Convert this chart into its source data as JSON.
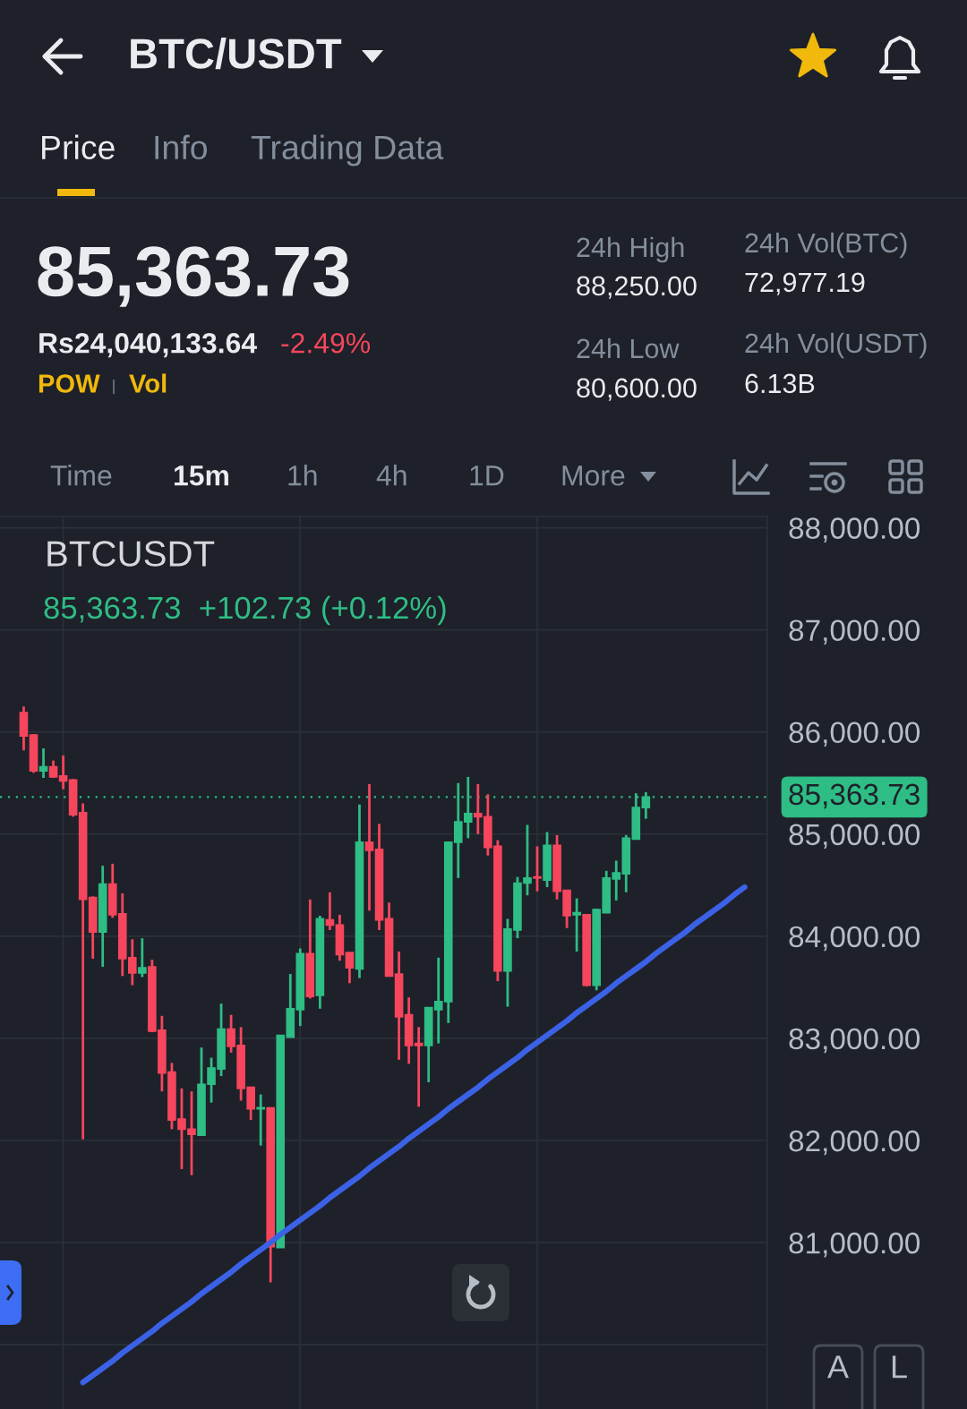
{
  "chart_data": [
    {
      "type": "other",
      "title": "BTC/USDT",
      "annotations": [
        "Price",
        "Info",
        "Trading Data",
        "85,363.73",
        "Rs24,040,133.64",
        "-2.49%",
        "POW",
        "Vol",
        "24h High",
        "88,250.00",
        "24h Low",
        "80,600.00",
        "24h Vol(BTC)",
        "72,977.19",
        "24h Vol(USDT)",
        "6.13B",
        "Time",
        "15m",
        "1h",
        "4h",
        "1D",
        "More",
        "A",
        "L"
      ]
    },
    {
      "type": "candlestick",
      "title": "BTCUSDT",
      "subtitle": "85,363.73  +102.73 (+0.12%)",
      "categories": [
        null,
        null,
        null,
        null,
        null,
        null,
        null,
        null,
        null,
        null,
        null,
        null,
        null,
        null,
        null,
        null,
        null,
        null,
        null,
        null,
        null,
        null,
        null,
        null,
        null,
        null,
        null,
        null,
        null,
        null,
        null,
        null,
        null,
        null,
        null,
        null,
        null,
        null,
        null,
        null,
        null,
        null,
        null,
        null,
        null,
        null,
        null,
        null,
        null,
        null,
        null,
        null,
        null,
        null,
        null,
        null,
        null,
        null,
        null,
        null,
        null,
        null,
        null,
        null,
        null,
        null,
        null,
        null,
        null,
        null,
        null,
        null,
        null,
        null,
        null
      ],
      "ohlc": [
        [
          86190,
          86250,
          85820,
          85960
        ],
        [
          85970,
          85980,
          85600,
          85620
        ],
        [
          85620,
          85840,
          85550,
          85660
        ],
        [
          85660,
          85720,
          85550,
          85560
        ],
        [
          85570,
          85770,
          85440,
          85520
        ],
        [
          85530,
          85540,
          85170,
          85190
        ],
        [
          85210,
          85300,
          82010,
          84360
        ],
        [
          84380,
          84390,
          83780,
          84040
        ],
        [
          84040,
          84690,
          83700,
          84510
        ],
        [
          84510,
          84710,
          84180,
          84210
        ],
        [
          84220,
          84420,
          83610,
          83780
        ],
        [
          83790,
          83970,
          83520,
          83640
        ],
        [
          83640,
          83980,
          83600,
          83690
        ],
        [
          83700,
          83770,
          83060,
          83070
        ],
        [
          83080,
          83220,
          82480,
          82660
        ],
        [
          82670,
          82760,
          82110,
          82200
        ],
        [
          82210,
          82510,
          81720,
          82110
        ],
        [
          82110,
          82480,
          81660,
          82060
        ],
        [
          82050,
          82910,
          82050,
          82550
        ],
        [
          82550,
          82810,
          82370,
          82710
        ],
        [
          82700,
          83340,
          82630,
          83090
        ],
        [
          83090,
          83230,
          82860,
          82920
        ],
        [
          82930,
          83110,
          82390,
          82510
        ],
        [
          82520,
          82520,
          82200,
          82310
        ],
        [
          82310,
          82450,
          81950,
          82320
        ],
        [
          82320,
          82320,
          80610,
          80960
        ],
        [
          80950,
          83030,
          80950,
          83030
        ],
        [
          83010,
          83630,
          83010,
          83290
        ],
        [
          83280,
          83880,
          83120,
          83830
        ],
        [
          83830,
          84360,
          83390,
          83410
        ],
        [
          83420,
          84200,
          83290,
          84170
        ],
        [
          84160,
          84430,
          84060,
          84110
        ],
        [
          84110,
          84210,
          83760,
          83820
        ],
        [
          83840,
          83840,
          83540,
          83690
        ],
        [
          83680,
          85290,
          83590,
          84920
        ],
        [
          84920,
          85490,
          84250,
          84840
        ],
        [
          84850,
          85100,
          84060,
          84160
        ],
        [
          84170,
          84330,
          83610,
          83610
        ],
        [
          83630,
          83850,
          82790,
          83210
        ],
        [
          83230,
          83400,
          82750,
          82930
        ],
        [
          82950,
          83110,
          82330,
          82930
        ],
        [
          82930,
          83300,
          82570,
          83300
        ],
        [
          83280,
          83790,
          82950,
          83360
        ],
        [
          83360,
          84920,
          83150,
          84920
        ],
        [
          84920,
          85500,
          84570,
          85120
        ],
        [
          85120,
          85560,
          84960,
          85200
        ],
        [
          85200,
          85490,
          85000,
          85170
        ],
        [
          85170,
          85390,
          84790,
          84870
        ],
        [
          84880,
          84940,
          83560,
          83660
        ],
        [
          83660,
          84170,
          83310,
          84070
        ],
        [
          84060,
          84580,
          83980,
          84520
        ],
        [
          84520,
          85090,
          84400,
          84570
        ],
        [
          84580,
          84880,
          84440,
          84570
        ],
        [
          84550,
          85020,
          84480,
          84890
        ],
        [
          84890,
          84990,
          84360,
          84440
        ],
        [
          84450,
          84450,
          84080,
          84200
        ],
        [
          84210,
          84370,
          83850,
          84230
        ],
        [
          84210,
          84210,
          83510,
          83520
        ],
        [
          83520,
          84270,
          83470,
          84260
        ],
        [
          84230,
          84640,
          84230,
          84570
        ],
        [
          84560,
          84740,
          84350,
          84620
        ],
        [
          84610,
          84990,
          84430,
          84960
        ],
        [
          84950,
          85400,
          84950,
          85260
        ],
        [
          85260,
          85410,
          85150,
          85363.73
        ],
        null,
        null,
        null,
        null,
        null,
        null,
        null,
        null,
        null,
        null,
        null
      ],
      "colors": [
        "#f6465d",
        "#f6465d",
        "#2ebd85",
        "#f6465d",
        "#f6465d",
        "#f6465d",
        "#f6465d",
        "#f6465d",
        "#2ebd85",
        "#f6465d",
        "#f6465d",
        "#f6465d",
        "#2ebd85",
        "#f6465d",
        "#f6465d",
        "#f6465d",
        "#f6465d",
        "#f6465d",
        "#2ebd85",
        "#2ebd85",
        "#2ebd85",
        "#f6465d",
        "#f6465d",
        "#f6465d",
        "#2ebd85",
        "#f6465d",
        "#2ebd85",
        "#2ebd85",
        "#2ebd85",
        "#f6465d",
        "#2ebd85",
        "#f6465d",
        "#f6465d",
        "#f6465d",
        "#2ebd85",
        "#f6465d",
        "#f6465d",
        "#f6465d",
        "#f6465d",
        "#f6465d",
        "#f6465d",
        "#2ebd85",
        "#2ebd85",
        "#2ebd85",
        "#2ebd85",
        "#2ebd85",
        "#f6465d",
        "#f6465d",
        "#f6465d",
        "#2ebd85",
        "#2ebd85",
        "#2ebd85",
        "#f6465d",
        "#2ebd85",
        "#f6465d",
        "#f6465d",
        "#2ebd85",
        "#f6465d",
        "#2ebd85",
        "#2ebd85",
        "#2ebd85",
        "#2ebd85",
        "#2ebd85",
        "#2ebd85",
        null,
        null,
        null,
        null,
        null,
        null,
        null,
        null,
        null,
        null,
        null
      ],
      "series": [
        {
          "type": "line",
          "color": "#3b62e6",
          "values": [
            null,
            null,
            null,
            null,
            null,
            null,
            79630,
            79700,
            79770,
            79840,
            79920,
            79990,
            80060,
            80130,
            80210,
            80280,
            80350,
            80420,
            80500,
            80570,
            80640,
            80710,
            80790,
            80860,
            80930,
            81000,
            81080,
            81150,
            81220,
            81290,
            81360,
            81440,
            81510,
            81580,
            81650,
            81730,
            81800,
            81870,
            81940,
            82020,
            82090,
            82160,
            82230,
            82310,
            82380,
            82450,
            82520,
            82600,
            82670,
            82740,
            82810,
            82890,
            82960,
            83030,
            83100,
            83170,
            83250,
            83320,
            83390,
            83460,
            83540,
            83610,
            83680,
            83750,
            83830,
            83900,
            83970,
            84040,
            84120,
            84190,
            84260,
            84330,
            84410,
            84480,
            null
          ]
        }
      ],
      "ylim": [
        79370,
        88110
      ],
      "yticks": [
        {
          "value": 80000,
          "label": null
        },
        {
          "value": 81000,
          "label": "81,000.00"
        },
        {
          "value": 82000,
          "label": "82,000.00"
        },
        {
          "value": 83000,
          "label": "83,000.00"
        },
        {
          "value": 84000,
          "label": "84,000.00"
        },
        {
          "value": 85000,
          "label": "85,000.00"
        },
        {
          "value": 86000,
          "label": "86,000.00"
        },
        {
          "value": 87000,
          "label": "87,000.00"
        },
        {
          "value": 88000,
          "label": "88,000.00"
        }
      ],
      "ref_lines": [
        {
          "axis": "y",
          "value": 85363.73,
          "label": "85,363.73",
          "color": "#2ebd85",
          "line_style": "dotted"
        }
      ],
      "grid": true,
      "tick_labels": "y"
    }
  ]
}
